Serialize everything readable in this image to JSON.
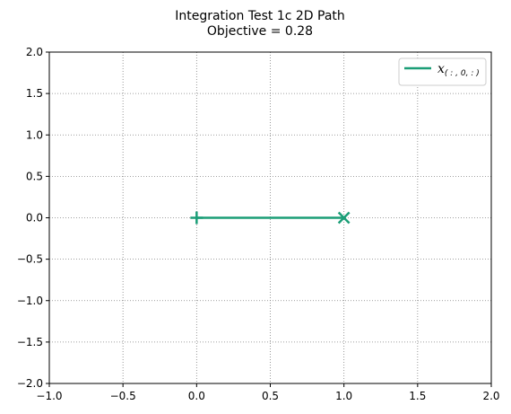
{
  "chart_data": {
    "type": "line",
    "title": "Integration Test 1c 2D Path",
    "subtitle": "Objective = 0.28",
    "xlabel": "",
    "ylabel": "",
    "xlim": [
      -1.0,
      2.0
    ],
    "ylim": [
      -2.0,
      2.0
    ],
    "xticks": [
      "−1.0",
      "−0.5",
      "0.0",
      "0.5",
      "1.0",
      "1.5",
      "2.0"
    ],
    "yticks": [
      "−2.0",
      "−1.5",
      "−1.0",
      "−0.5",
      "0.0",
      "0.5",
      "1.0",
      "1.5",
      "2.0"
    ],
    "grid": true,
    "legend_position": "top-right",
    "series": [
      {
        "name": "x",
        "name_subscript": "( : , 0, : )",
        "color": "#1b9e77",
        "x": [
          0.0,
          1.0
        ],
        "y": [
          0.0,
          0.0
        ],
        "start_marker": "plus",
        "end_marker": "x"
      }
    ]
  }
}
